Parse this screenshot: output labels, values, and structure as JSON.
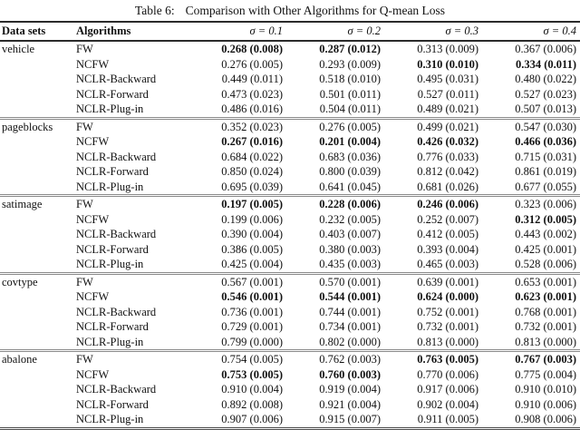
{
  "caption": {
    "label": "Table 6:",
    "text": "Comparison with Other Algorithms for Q-mean Loss"
  },
  "columns": [
    "Data sets",
    "Algorithms",
    "σ = 0.1",
    "σ = 0.2",
    "σ = 0.3",
    "σ = 0.4"
  ],
  "groups": [
    {
      "dataset": "vehicle",
      "rows": [
        {
          "algorithm": "FW",
          "values": [
            "0.268 (0.008)",
            "0.287 (0.012)",
            "0.313 (0.009)",
            "0.367 (0.006)"
          ],
          "bold": [
            true,
            true,
            false,
            false
          ]
        },
        {
          "algorithm": "NCFW",
          "values": [
            "0.276 (0.005)",
            "0.293 (0.009)",
            "0.310 (0.010)",
            "0.334 (0.011)"
          ],
          "bold": [
            false,
            false,
            true,
            true
          ]
        },
        {
          "algorithm": "NCLR-Backward",
          "values": [
            "0.449 (0.011)",
            "0.518 (0.010)",
            "0.495 (0.031)",
            "0.480 (0.022)"
          ],
          "bold": [
            false,
            false,
            false,
            false
          ]
        },
        {
          "algorithm": "NCLR-Forward",
          "values": [
            "0.473 (0.023)",
            "0.501 (0.011)",
            "0.527 (0.011)",
            "0.527 (0.023)"
          ],
          "bold": [
            false,
            false,
            false,
            false
          ]
        },
        {
          "algorithm": "NCLR-Plug-in",
          "values": [
            "0.486 (0.016)",
            "0.504 (0.011)",
            "0.489 (0.021)",
            "0.507 (0.013)"
          ],
          "bold": [
            false,
            false,
            false,
            false
          ]
        }
      ]
    },
    {
      "dataset": "pageblocks",
      "rows": [
        {
          "algorithm": "FW",
          "values": [
            "0.352 (0.023)",
            "0.276 (0.005)",
            "0.499 (0.021)",
            "0.547 (0.030)"
          ],
          "bold": [
            false,
            false,
            false,
            false
          ]
        },
        {
          "algorithm": "NCFW",
          "values": [
            "0.267 (0.016)",
            "0.201 (0.004)",
            "0.426 (0.032)",
            "0.466 (0.036)"
          ],
          "bold": [
            true,
            true,
            true,
            true
          ]
        },
        {
          "algorithm": "NCLR-Backward",
          "values": [
            "0.684 (0.022)",
            "0.683 (0.036)",
            "0.776 (0.033)",
            "0.715 (0.031)"
          ],
          "bold": [
            false,
            false,
            false,
            false
          ]
        },
        {
          "algorithm": "NCLR-Forward",
          "values": [
            "0.850 (0.024)",
            "0.800 (0.039)",
            "0.812 (0.042)",
            "0.861 (0.019)"
          ],
          "bold": [
            false,
            false,
            false,
            false
          ]
        },
        {
          "algorithm": "NCLR-Plug-in",
          "values": [
            "0.695 (0.039)",
            "0.641 (0.045)",
            "0.681 (0.026)",
            "0.677 (0.055)"
          ],
          "bold": [
            false,
            false,
            false,
            false
          ]
        }
      ]
    },
    {
      "dataset": "satimage",
      "rows": [
        {
          "algorithm": "FW",
          "values": [
            "0.197 (0.005)",
            "0.228 (0.006)",
            "0.246 (0.006)",
            "0.323 (0.006)"
          ],
          "bold": [
            true,
            true,
            true,
            false
          ]
        },
        {
          "algorithm": "NCFW",
          "values": [
            "0.199 (0.006)",
            "0.232 (0.005)",
            "0.252 (0.007)",
            "0.312 (0.005)"
          ],
          "bold": [
            false,
            false,
            false,
            true
          ]
        },
        {
          "algorithm": "NCLR-Backward",
          "values": [
            "0.390 (0.004)",
            "0.403 (0.007)",
            "0.412 (0.005)",
            "0.443 (0.002)"
          ],
          "bold": [
            false,
            false,
            false,
            false
          ]
        },
        {
          "algorithm": "NCLR-Forward",
          "values": [
            "0.386 (0.005)",
            "0.380 (0.003)",
            "0.393 (0.004)",
            "0.425 (0.001)"
          ],
          "bold": [
            false,
            false,
            false,
            false
          ]
        },
        {
          "algorithm": "NCLR-Plug-in",
          "values": [
            "0.425 (0.004)",
            "0.435 (0.003)",
            "0.465 (0.003)",
            "0.528 (0.006)"
          ],
          "bold": [
            false,
            false,
            false,
            false
          ]
        }
      ]
    },
    {
      "dataset": "covtype",
      "rows": [
        {
          "algorithm": "FW",
          "values": [
            "0.567 (0.001)",
            "0.570 (0.001)",
            "0.639 (0.001)",
            "0.653 (0.001)"
          ],
          "bold": [
            false,
            false,
            false,
            false
          ]
        },
        {
          "algorithm": "NCFW",
          "values": [
            "0.546 (0.001)",
            "0.544 (0.001)",
            "0.624 (0.000)",
            "0.623 (0.001)"
          ],
          "bold": [
            true,
            true,
            true,
            true
          ]
        },
        {
          "algorithm": "NCLR-Backward",
          "values": [
            "0.736 (0.001)",
            "0.744 (0.001)",
            "0.752 (0.001)",
            "0.768 (0.001)"
          ],
          "bold": [
            false,
            false,
            false,
            false
          ]
        },
        {
          "algorithm": "NCLR-Forward",
          "values": [
            "0.729 (0.001)",
            "0.734 (0.001)",
            "0.732 (0.001)",
            "0.732 (0.001)"
          ],
          "bold": [
            false,
            false,
            false,
            false
          ]
        },
        {
          "algorithm": "NCLR-Plug-in",
          "values": [
            "0.799 (0.000)",
            "0.802 (0.000)",
            "0.813 (0.000)",
            "0.813 (0.000)"
          ],
          "bold": [
            false,
            false,
            false,
            false
          ]
        }
      ]
    },
    {
      "dataset": "abalone",
      "rows": [
        {
          "algorithm": "FW",
          "values": [
            "0.754 (0.005)",
            "0.762 (0.003)",
            "0.763 (0.005)",
            "0.767 (0.003)"
          ],
          "bold": [
            false,
            false,
            true,
            true
          ]
        },
        {
          "algorithm": "NCFW",
          "values": [
            "0.753 (0.005)",
            "0.760 (0.003)",
            "0.770 (0.006)",
            "0.775 (0.004)"
          ],
          "bold": [
            true,
            true,
            false,
            false
          ]
        },
        {
          "algorithm": "NCLR-Backward",
          "values": [
            "0.910 (0.004)",
            "0.919 (0.004)",
            "0.917 (0.006)",
            "0.910 (0.010)"
          ],
          "bold": [
            false,
            false,
            false,
            false
          ]
        },
        {
          "algorithm": "NCLR-Forward",
          "values": [
            "0.892 (0.008)",
            "0.921 (0.004)",
            "0.902 (0.004)",
            "0.910 (0.006)"
          ],
          "bold": [
            false,
            false,
            false,
            false
          ]
        },
        {
          "algorithm": "NCLR-Plug-in",
          "values": [
            "0.907 (0.006)",
            "0.915 (0.007)",
            "0.911 (0.005)",
            "0.908 (0.006)"
          ],
          "bold": [
            false,
            false,
            false,
            false
          ]
        }
      ]
    }
  ]
}
